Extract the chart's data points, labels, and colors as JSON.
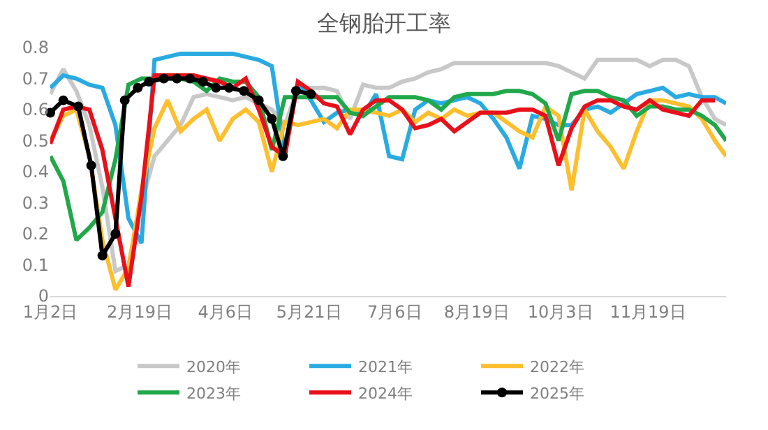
{
  "chart_data": {
    "type": "line",
    "title": "全钢胎开工率",
    "x": [
      "--01-02",
      "--01-09",
      "--01-16",
      "--01-23",
      "--01-30",
      "--02-06",
      "--02-13",
      "--02-20",
      "--02-27",
      "--03-06",
      "--03-13",
      "--03-20",
      "--03-27",
      "--04-03",
      "--04-10",
      "--04-17",
      "--04-24",
      "--05-01",
      "--05-08",
      "--05-15",
      "--05-22",
      "--05-29",
      "--06-05",
      "--06-12",
      "--06-19",
      "--06-26",
      "--07-03",
      "--07-10",
      "--07-17",
      "--07-24",
      "--07-31",
      "--08-07",
      "--08-14",
      "--08-21",
      "--08-28",
      "--09-04",
      "--09-11",
      "--09-18",
      "--09-25",
      "--10-02",
      "--10-09",
      "--10-16",
      "--10-23",
      "--10-30",
      "--11-06",
      "--11-13",
      "--11-20",
      "--11-27",
      "--12-04",
      "--12-11",
      "--12-18",
      "--12-25",
      "--12-31"
    ],
    "xlim": [
      "--01-02",
      "--12-31"
    ],
    "xticks": [
      {
        "value": "--01-02",
        "label": "1月2日"
      },
      {
        "value": "--02-19",
        "label": "2月19日"
      },
      {
        "value": "--04-06",
        "label": "4月6日"
      },
      {
        "value": "--05-21",
        "label": "5月21日"
      },
      {
        "value": "--07-06",
        "label": "7月6日"
      },
      {
        "value": "--08-19",
        "label": "8月19日"
      },
      {
        "value": "--10-03",
        "label": "10月3日"
      },
      {
        "value": "--11-19",
        "label": "11月19日"
      }
    ],
    "ylim": [
      0,
      0.8
    ],
    "yticks": [
      0,
      0.1,
      0.2,
      0.3,
      0.4,
      0.5,
      0.6,
      0.7,
      0.8
    ],
    "grid": false,
    "legend": "bottom",
    "marker": "none",
    "line_style": "solid",
    "series": [
      {
        "name": "2020年",
        "color": "#c8c8c8",
        "values": [
          0.65,
          0.73,
          0.66,
          0.55,
          0.35,
          0.08,
          0.1,
          0.3,
          0.45,
          0.5,
          0.55,
          0.64,
          0.65,
          0.64,
          0.63,
          0.64,
          0.62,
          0.6,
          0.55,
          0.67,
          0.67,
          0.67,
          0.66,
          0.57,
          0.68,
          0.67,
          0.67,
          0.69,
          0.7,
          0.72,
          0.73,
          0.75,
          0.75,
          0.75,
          0.75,
          0.75,
          0.75,
          0.75,
          0.75,
          0.74,
          0.72,
          0.7,
          0.76,
          0.76,
          0.76,
          0.76,
          0.74,
          0.76,
          0.76,
          0.74,
          0.64,
          0.57,
          0.55
        ]
      },
      {
        "name": "2021年",
        "color": "#29abe2",
        "values": [
          0.67,
          0.71,
          0.7,
          0.68,
          0.67,
          0.55,
          0.25,
          0.17,
          0.76,
          0.77,
          0.78,
          0.78,
          0.78,
          0.78,
          0.78,
          0.77,
          0.76,
          0.74,
          0.46,
          0.69,
          0.63,
          0.56,
          0.59,
          0.6,
          0.58,
          0.65,
          0.45,
          0.44,
          0.6,
          0.63,
          0.62,
          0.63,
          0.64,
          0.62,
          0.57,
          0.51,
          0.41,
          0.58,
          0.57,
          0.55,
          0.55,
          0.6,
          0.61,
          0.59,
          0.62,
          0.65,
          0.66,
          0.67,
          0.64,
          0.65,
          0.64,
          0.64,
          0.62
        ]
      },
      {
        "name": "2022年",
        "color": "#fdbf2d",
        "values": [
          0.5,
          0.58,
          0.6,
          0.45,
          0.18,
          0.02,
          0.09,
          0.34,
          0.54,
          0.63,
          0.53,
          0.57,
          0.6,
          0.5,
          0.57,
          0.6,
          0.56,
          0.4,
          0.56,
          0.55,
          0.56,
          0.57,
          0.54,
          0.6,
          0.6,
          0.59,
          0.58,
          0.6,
          0.56,
          0.59,
          0.57,
          0.6,
          0.58,
          0.59,
          0.59,
          0.56,
          0.53,
          0.51,
          0.61,
          0.58,
          0.34,
          0.6,
          0.53,
          0.48,
          0.41,
          0.53,
          0.63,
          0.63,
          0.62,
          0.61,
          0.57,
          0.5,
          0.45
        ]
      },
      {
        "name": "2023年",
        "color": "#20a84a",
        "values": [
          0.45,
          0.37,
          0.18,
          0.22,
          0.27,
          0.44,
          0.68,
          0.7,
          0.7,
          0.7,
          0.7,
          0.69,
          0.66,
          0.7,
          0.69,
          0.69,
          0.64,
          0.47,
          0.64,
          0.64,
          0.64,
          0.64,
          0.64,
          0.59,
          0.58,
          0.61,
          0.64,
          0.64,
          0.64,
          0.63,
          0.6,
          0.64,
          0.65,
          0.65,
          0.65,
          0.66,
          0.66,
          0.65,
          0.62,
          0.5,
          0.65,
          0.66,
          0.66,
          0.64,
          0.63,
          0.58,
          0.61,
          0.61,
          0.6,
          0.6,
          0.58,
          0.55,
          0.5
        ]
      },
      {
        "name": "2024年",
        "color": "#e8101a",
        "values": [
          0.49,
          0.6,
          0.61,
          0.6,
          0.47,
          0.25,
          0.03,
          0.32,
          0.71,
          0.71,
          0.71,
          0.71,
          0.7,
          0.69,
          0.67,
          0.7,
          0.6,
          0.48,
          0.45,
          0.69,
          0.66,
          0.62,
          0.61,
          0.52,
          0.6,
          0.63,
          0.63,
          0.6,
          0.54,
          0.55,
          0.57,
          0.53,
          0.56,
          0.59,
          0.59,
          0.59,
          0.6,
          0.6,
          0.58,
          0.42,
          0.54,
          0.61,
          0.63,
          0.63,
          0.61,
          0.6,
          0.63,
          0.6,
          0.59,
          0.58,
          0.63,
          0.63,
          null
        ]
      },
      {
        "name": "2025年",
        "color": "#000000",
        "marker": "circle",
        "x": [
          "--01-02",
          "--01-09",
          "--01-17",
          "--01-24",
          "--01-30",
          "--02-06",
          "--02-11",
          "--02-18",
          "--02-24",
          "--03-04",
          "--03-11",
          "--03-18",
          "--03-25",
          "--04-01",
          "--04-08",
          "--04-16",
          "--04-24",
          "--05-01",
          "--05-07",
          "--05-14",
          "--05-22"
        ],
        "values": [
          0.59,
          0.63,
          0.61,
          0.42,
          0.13,
          0.2,
          0.63,
          0.67,
          0.69,
          0.7,
          0.7,
          0.7,
          0.69,
          0.67,
          0.67,
          0.66,
          0.63,
          0.57,
          0.45,
          0.66,
          0.65
        ]
      }
    ]
  }
}
